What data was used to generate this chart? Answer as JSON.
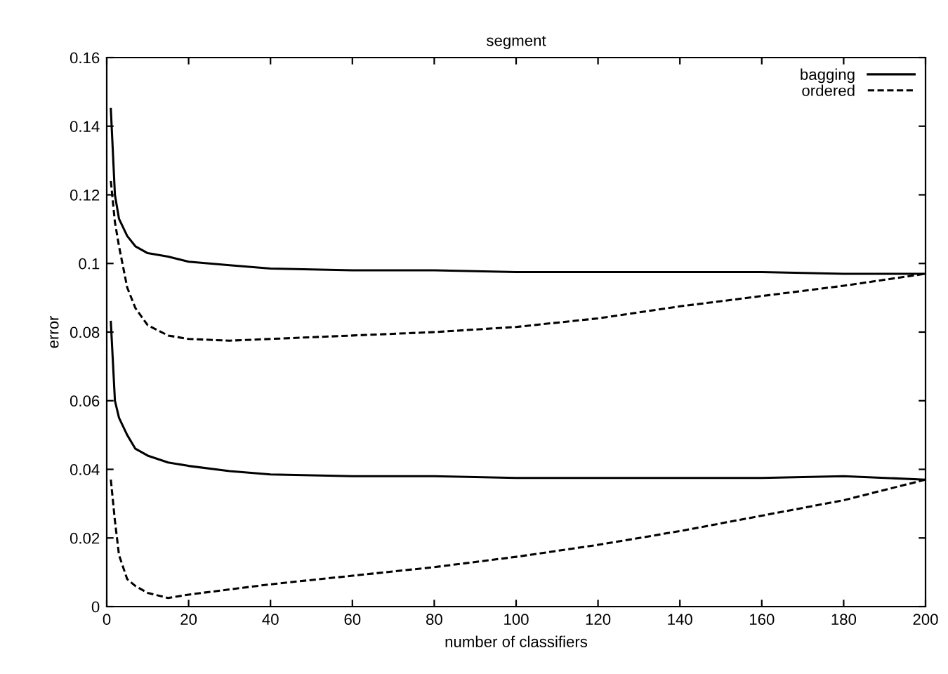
{
  "chart_data": {
    "type": "line",
    "title": "segment",
    "xlabel": "number of classifiers",
    "ylabel": "error",
    "xlim": [
      0,
      200
    ],
    "xticks": [
      0,
      20,
      40,
      60,
      80,
      100,
      120,
      140,
      160,
      180,
      200
    ],
    "ylim": [
      0,
      0.16
    ],
    "yticks": [
      0,
      0.02,
      0.04,
      0.06,
      0.08,
      0.1,
      0.12,
      0.14,
      0.16
    ],
    "grid": false,
    "legend": "top right",
    "marker": "none",
    "series": [
      {
        "name": "bagging",
        "color": "#000000",
        "line_style": "solid",
        "x": [
          1,
          2,
          3,
          5,
          7,
          10,
          15,
          20,
          30,
          40,
          60,
          80,
          100,
          120,
          140,
          160,
          180,
          200
        ],
        "values": [
          0.145,
          0.12,
          0.113,
          0.108,
          0.105,
          0.103,
          0.102,
          0.1005,
          0.0995,
          0.0985,
          0.098,
          0.098,
          0.0975,
          0.0975,
          0.0975,
          0.0975,
          0.097,
          0.097
        ]
      },
      {
        "name": "ordered",
        "color": "#000000",
        "line_style": "dashed",
        "x": [
          1,
          2,
          3,
          5,
          7,
          10,
          15,
          20,
          30,
          40,
          60,
          80,
          100,
          120,
          140,
          160,
          180,
          200
        ],
        "values": [
          0.124,
          0.112,
          0.105,
          0.093,
          0.087,
          0.082,
          0.079,
          0.078,
          0.0775,
          0.078,
          0.079,
          0.08,
          0.0815,
          0.084,
          0.0875,
          0.0905,
          0.0935,
          0.097
        ]
      },
      {
        "color": "#000000",
        "line_style": "solid",
        "x": [
          1,
          2,
          3,
          5,
          7,
          10,
          15,
          20,
          30,
          40,
          60,
          80,
          100,
          120,
          140,
          160,
          180,
          200
        ],
        "values": [
          0.083,
          0.06,
          0.055,
          0.05,
          0.046,
          0.044,
          0.042,
          0.041,
          0.0395,
          0.0385,
          0.038,
          0.038,
          0.0375,
          0.0375,
          0.0375,
          0.0375,
          0.038,
          0.037
        ]
      },
      {
        "color": "#000000",
        "line_style": "dashed",
        "x": [
          1,
          2,
          3,
          5,
          7,
          10,
          15,
          20,
          30,
          40,
          60,
          80,
          100,
          120,
          140,
          160,
          180,
          200
        ],
        "values": [
          0.037,
          0.025,
          0.015,
          0.008,
          0.006,
          0.004,
          0.0025,
          0.0035,
          0.005,
          0.0065,
          0.009,
          0.0115,
          0.0145,
          0.018,
          0.022,
          0.0265,
          0.031,
          0.037
        ]
      }
    ]
  }
}
